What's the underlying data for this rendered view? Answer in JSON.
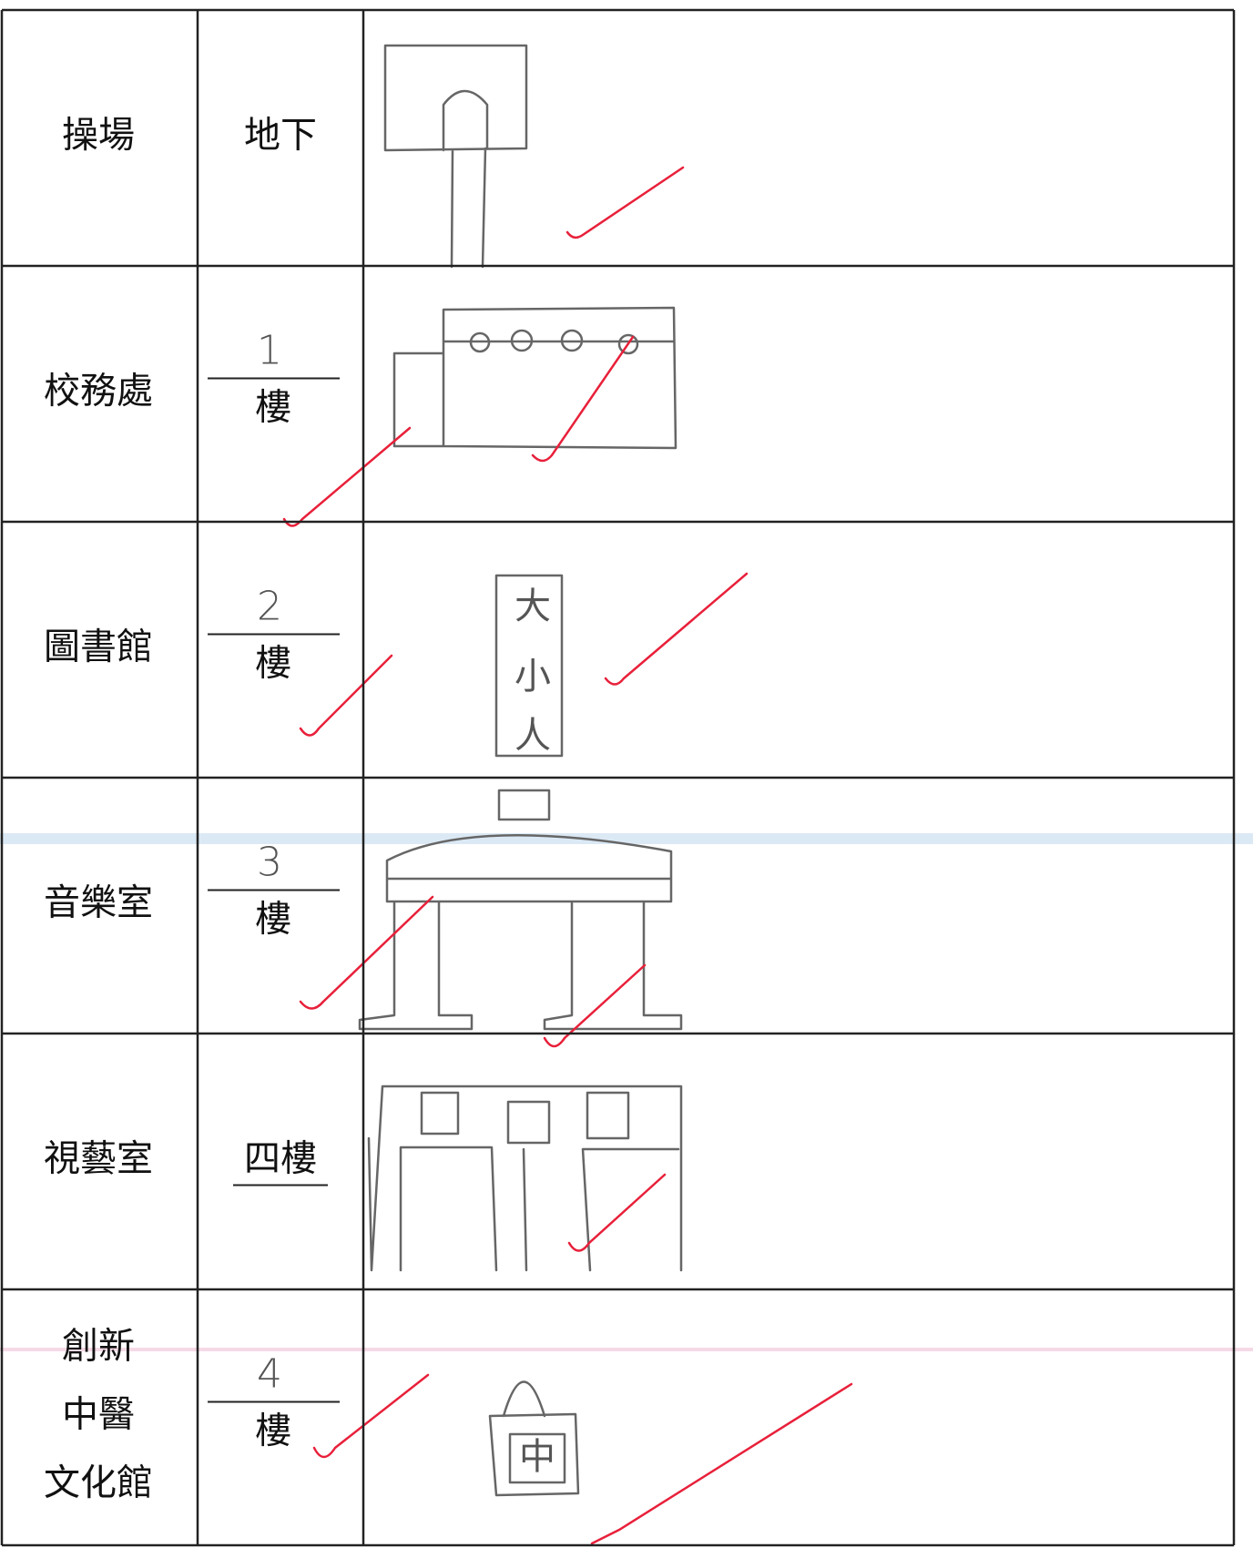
{
  "table": {
    "rows": [
      {
        "place": [
          "操場"
        ],
        "floor": {
          "text": "地下"
        }
      },
      {
        "place": [
          "校務處"
        ],
        "floor": {
          "answer": "1",
          "unit": "樓"
        }
      },
      {
        "place": [
          "圖書館"
        ],
        "floor": {
          "answer": "2",
          "unit": "樓"
        },
        "sketch_text": [
          "大",
          "小",
          "人"
        ]
      },
      {
        "place": [
          "音樂室"
        ],
        "floor": {
          "answer": "3",
          "unit": "樓"
        }
      },
      {
        "place": [
          "視藝室"
        ],
        "floor": {
          "text": "四樓"
        }
      },
      {
        "place": [
          "創新",
          "中醫",
          "文化館"
        ],
        "floor": {
          "answer": "4",
          "unit": "樓"
        },
        "sketch_text": [
          "中"
        ]
      }
    ]
  }
}
